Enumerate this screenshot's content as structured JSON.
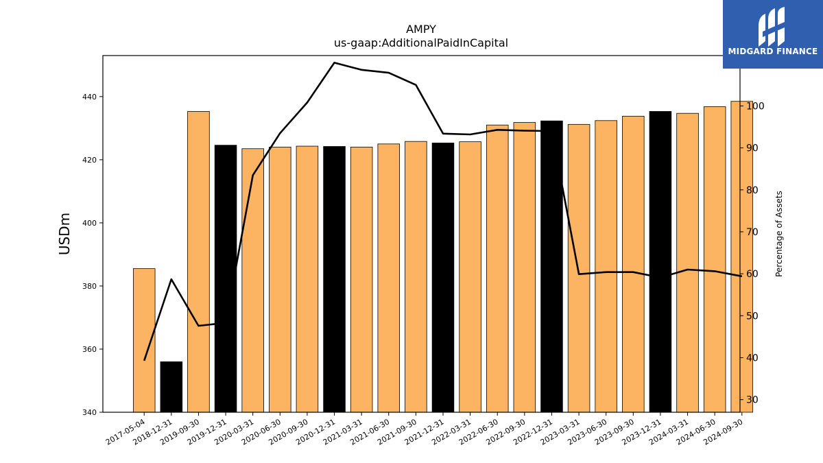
{
  "logo": {
    "text": "MIDGARD FINANCE"
  },
  "chart_data": {
    "type": "bar",
    "title": "AMPY",
    "subtitle": "us-gaap:AdditionalPaidInCapital",
    "ylabel": "USDm",
    "y2label": "Percentage of Assets",
    "ylim": [
      340,
      453
    ],
    "y2lim": [
      27,
      112
    ],
    "yticks": [
      340,
      360,
      380,
      400,
      420,
      440
    ],
    "y2ticks": [
      30,
      40,
      50,
      60,
      70,
      80,
      90,
      100
    ],
    "categories": [
      "2017-05-04",
      "2018-12-31",
      "2019-09-30",
      "2019-12-31",
      "2020-03-31",
      "2020-06-30",
      "2020-09-30",
      "2020-12-31",
      "2021-03-31",
      "2021-06-30",
      "2021-09-30",
      "2021-12-31",
      "2022-03-31",
      "2022-06-30",
      "2022-09-30",
      "2022-12-31",
      "2023-03-31",
      "2023-06-30",
      "2023-09-30",
      "2023-12-31",
      "2024-03-31",
      "2024-06-30",
      "2024-09-30"
    ],
    "series": [
      {
        "type": "bar",
        "axis": "left",
        "values": [
          385.5,
          356.0,
          435.3,
          424.6,
          423.5,
          424.0,
          424.3,
          424.2,
          424.0,
          425.0,
          425.8,
          425.3,
          425.7,
          431.0,
          431.8,
          432.3,
          431.2,
          432.4,
          433.8,
          435.3,
          434.7,
          436.8,
          438.5
        ],
        "annual": [
          false,
          true,
          false,
          true,
          false,
          false,
          false,
          true,
          false,
          false,
          false,
          true,
          false,
          false,
          false,
          true,
          false,
          false,
          false,
          true,
          false,
          false,
          false
        ]
      },
      {
        "type": "line",
        "axis": "right",
        "values": [
          39.3,
          58.7,
          47.6,
          48.3,
          83.5,
          93.5,
          100.8,
          110.3,
          108.6,
          107.9,
          105.0,
          93.4,
          93.2,
          94.3,
          94.1,
          94.0,
          59.9,
          60.4,
          60.4,
          59.1,
          61.0,
          60.6,
          59.4
        ]
      }
    ],
    "colors": {
      "quarter_bar": "#fdb462",
      "annual_bar": "#000000",
      "line": "#000000"
    },
    "grid": false,
    "legend": "none"
  }
}
